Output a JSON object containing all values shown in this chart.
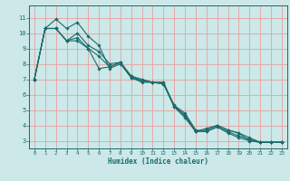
{
  "title": "",
  "xlabel": "Humidex (Indice chaleur)",
  "ylabel": "",
  "bg_color": "#cce8e8",
  "line_color": "#1a6b6b",
  "grid_color": "#e8a0a0",
  "xlim": [
    -0.5,
    23.5
  ],
  "ylim": [
    2.5,
    11.8
  ],
  "xticks": [
    0,
    1,
    2,
    3,
    4,
    5,
    6,
    7,
    8,
    9,
    10,
    11,
    12,
    13,
    14,
    15,
    16,
    17,
    18,
    19,
    20,
    21,
    22,
    23
  ],
  "yticks": [
    3,
    4,
    5,
    6,
    7,
    8,
    9,
    10,
    11
  ],
  "series": [
    [
      7.0,
      10.3,
      10.3,
      9.5,
      9.5,
      9.0,
      7.7,
      7.8,
      8.1,
      7.2,
      6.9,
      6.8,
      6.8,
      5.2,
      4.7,
      3.6,
      3.8,
      4.0,
      3.7,
      3.5,
      3.2,
      2.9,
      2.9,
      2.9
    ],
    [
      7.0,
      10.3,
      10.9,
      10.3,
      10.7,
      9.8,
      9.2,
      7.7,
      8.0,
      7.1,
      6.8,
      6.8,
      6.7,
      5.2,
      4.5,
      3.6,
      3.7,
      4.0,
      3.7,
      3.5,
      3.0,
      2.9,
      2.9,
      2.9
    ],
    [
      7.0,
      10.3,
      10.3,
      9.5,
      10.0,
      9.2,
      8.8,
      8.0,
      8.1,
      7.1,
      6.9,
      6.8,
      6.7,
      5.3,
      4.6,
      3.6,
      3.6,
      3.9,
      3.6,
      3.3,
      3.1,
      2.9,
      2.9,
      2.9
    ],
    [
      7.0,
      10.3,
      10.3,
      9.5,
      9.7,
      9.0,
      8.5,
      7.8,
      8.1,
      7.2,
      7.0,
      6.8,
      6.8,
      5.3,
      4.8,
      3.7,
      3.6,
      3.9,
      3.5,
      3.2,
      3.0,
      2.9,
      2.9,
      2.9
    ]
  ]
}
